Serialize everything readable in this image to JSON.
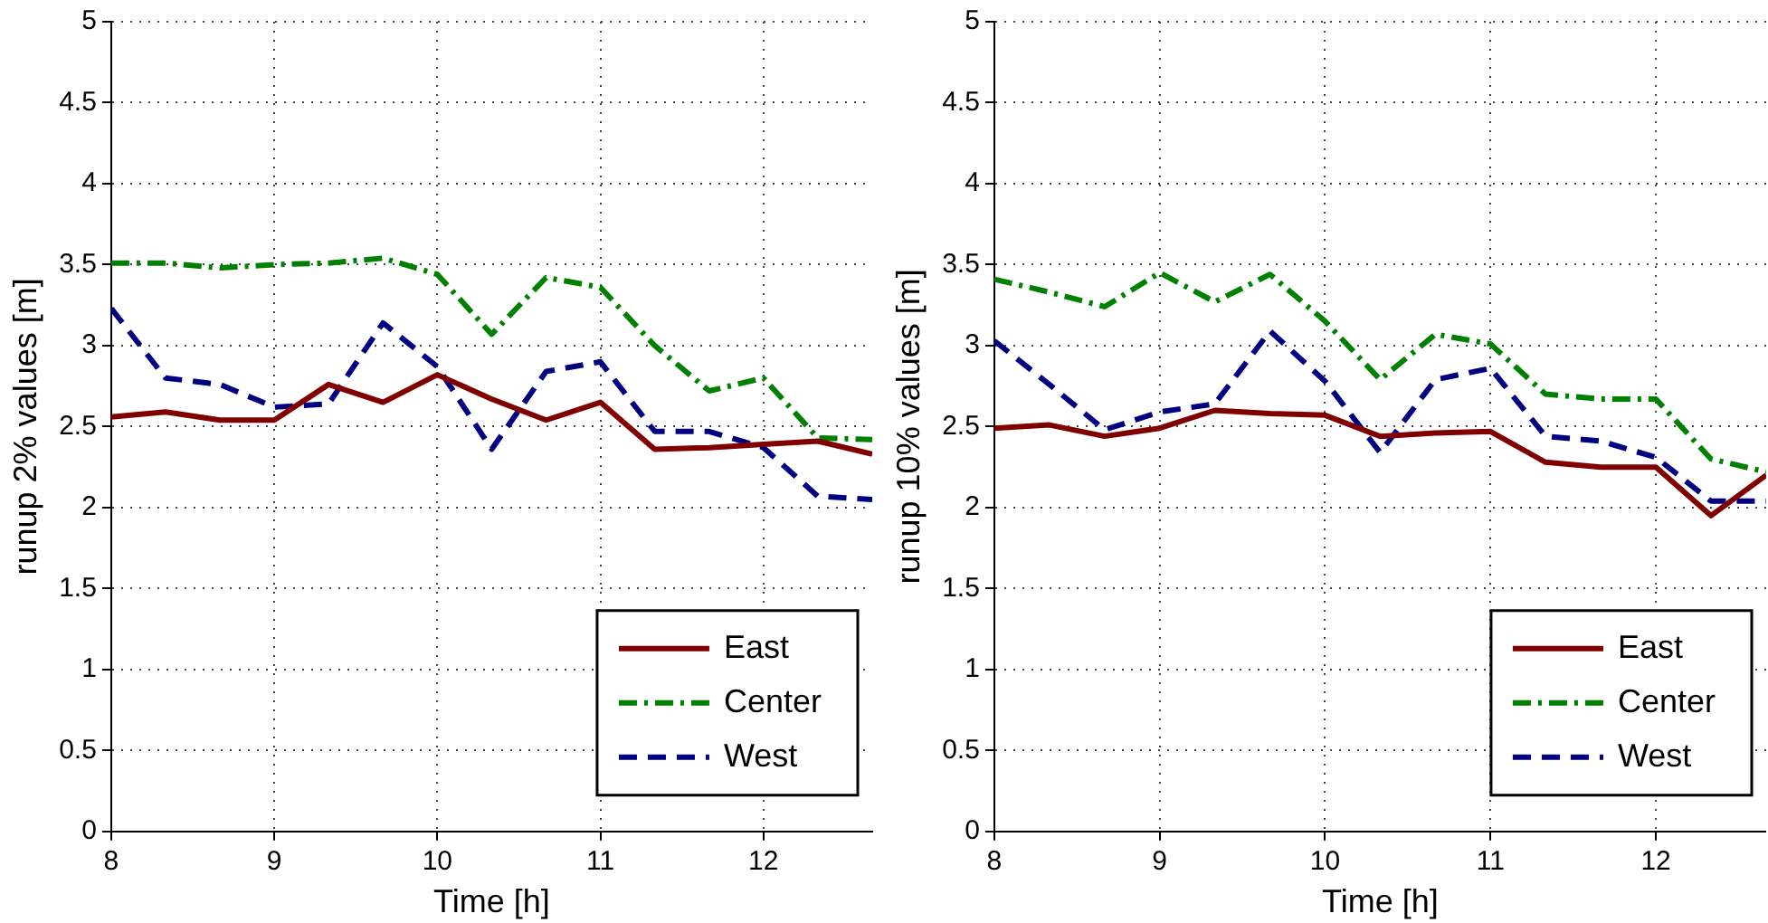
{
  "chart_data": [
    {
      "type": "line",
      "xlabel": "Time [h]",
      "ylabel": "runup 2% values [m]",
      "x": [
        8,
        8.333,
        8.667,
        9,
        9.333,
        9.667,
        10,
        10.333,
        10.667,
        11,
        11.333,
        11.667,
        12,
        12.333,
        12.667
      ],
      "series": [
        {
          "name": "East",
          "color": "#800000",
          "line_style": "solid",
          "values": [
            2.56,
            2.59,
            2.54,
            2.54,
            2.76,
            2.65,
            2.82,
            2.67,
            2.54,
            2.65,
            2.36,
            2.37,
            2.39,
            2.41,
            2.33
          ]
        },
        {
          "name": "Center",
          "color": "#008000",
          "line_style": "dashdot",
          "values": [
            3.51,
            3.51,
            3.48,
            3.5,
            3.51,
            3.54,
            3.44,
            3.07,
            3.42,
            3.36,
            3.0,
            2.72,
            2.8,
            2.43,
            2.42
          ]
        },
        {
          "name": "West",
          "color": "#000080",
          "line_style": "dashed",
          "values": [
            3.23,
            2.8,
            2.76,
            2.62,
            2.64,
            3.14,
            2.87,
            2.36,
            2.84,
            2.9,
            2.47,
            2.47,
            2.37,
            2.07,
            2.05
          ]
        }
      ],
      "xlim": [
        8,
        12.667
      ],
      "xticks": [
        8,
        9,
        10,
        11,
        12
      ],
      "ylim": [
        0,
        5
      ],
      "yticks": [
        0,
        0.5,
        1,
        1.5,
        2,
        2.5,
        3,
        3.5,
        4,
        4.5,
        5
      ],
      "grid": true,
      "legend": "bottom right",
      "marker": "none"
    },
    {
      "type": "line",
      "xlabel": "Time [h]",
      "ylabel": "runup 10% values [m]",
      "x": [
        8,
        8.333,
        8.667,
        9,
        9.333,
        9.667,
        10,
        10.333,
        10.667,
        11,
        11.333,
        11.667,
        12,
        12.333,
        12.667
      ],
      "series": [
        {
          "name": "East",
          "color": "#800000",
          "line_style": "solid",
          "values": [
            2.49,
            2.51,
            2.44,
            2.49,
            2.6,
            2.58,
            2.57,
            2.44,
            2.46,
            2.47,
            2.28,
            2.25,
            2.25,
            1.95,
            2.2
          ]
        },
        {
          "name": "Center",
          "color": "#008000",
          "line_style": "dashdot",
          "values": [
            3.41,
            3.33,
            3.24,
            3.45,
            3.27,
            3.44,
            3.15,
            2.79,
            3.07,
            3.01,
            2.7,
            2.67,
            2.67,
            2.3,
            2.22
          ]
        },
        {
          "name": "West",
          "color": "#000080",
          "line_style": "dashed",
          "values": [
            3.03,
            2.76,
            2.48,
            2.59,
            2.64,
            3.09,
            2.78,
            2.34,
            2.79,
            2.86,
            2.44,
            2.41,
            2.31,
            2.04,
            2.04
          ]
        }
      ],
      "xlim": [
        8,
        12.667
      ],
      "xticks": [
        8,
        9,
        10,
        11,
        12
      ],
      "ylim": [
        0,
        5
      ],
      "yticks": [
        0,
        0.5,
        1,
        1.5,
        2,
        2.5,
        3,
        3.5,
        4,
        4.5,
        5
      ],
      "grid": true,
      "legend": "bottom right",
      "marker": "none"
    }
  ]
}
